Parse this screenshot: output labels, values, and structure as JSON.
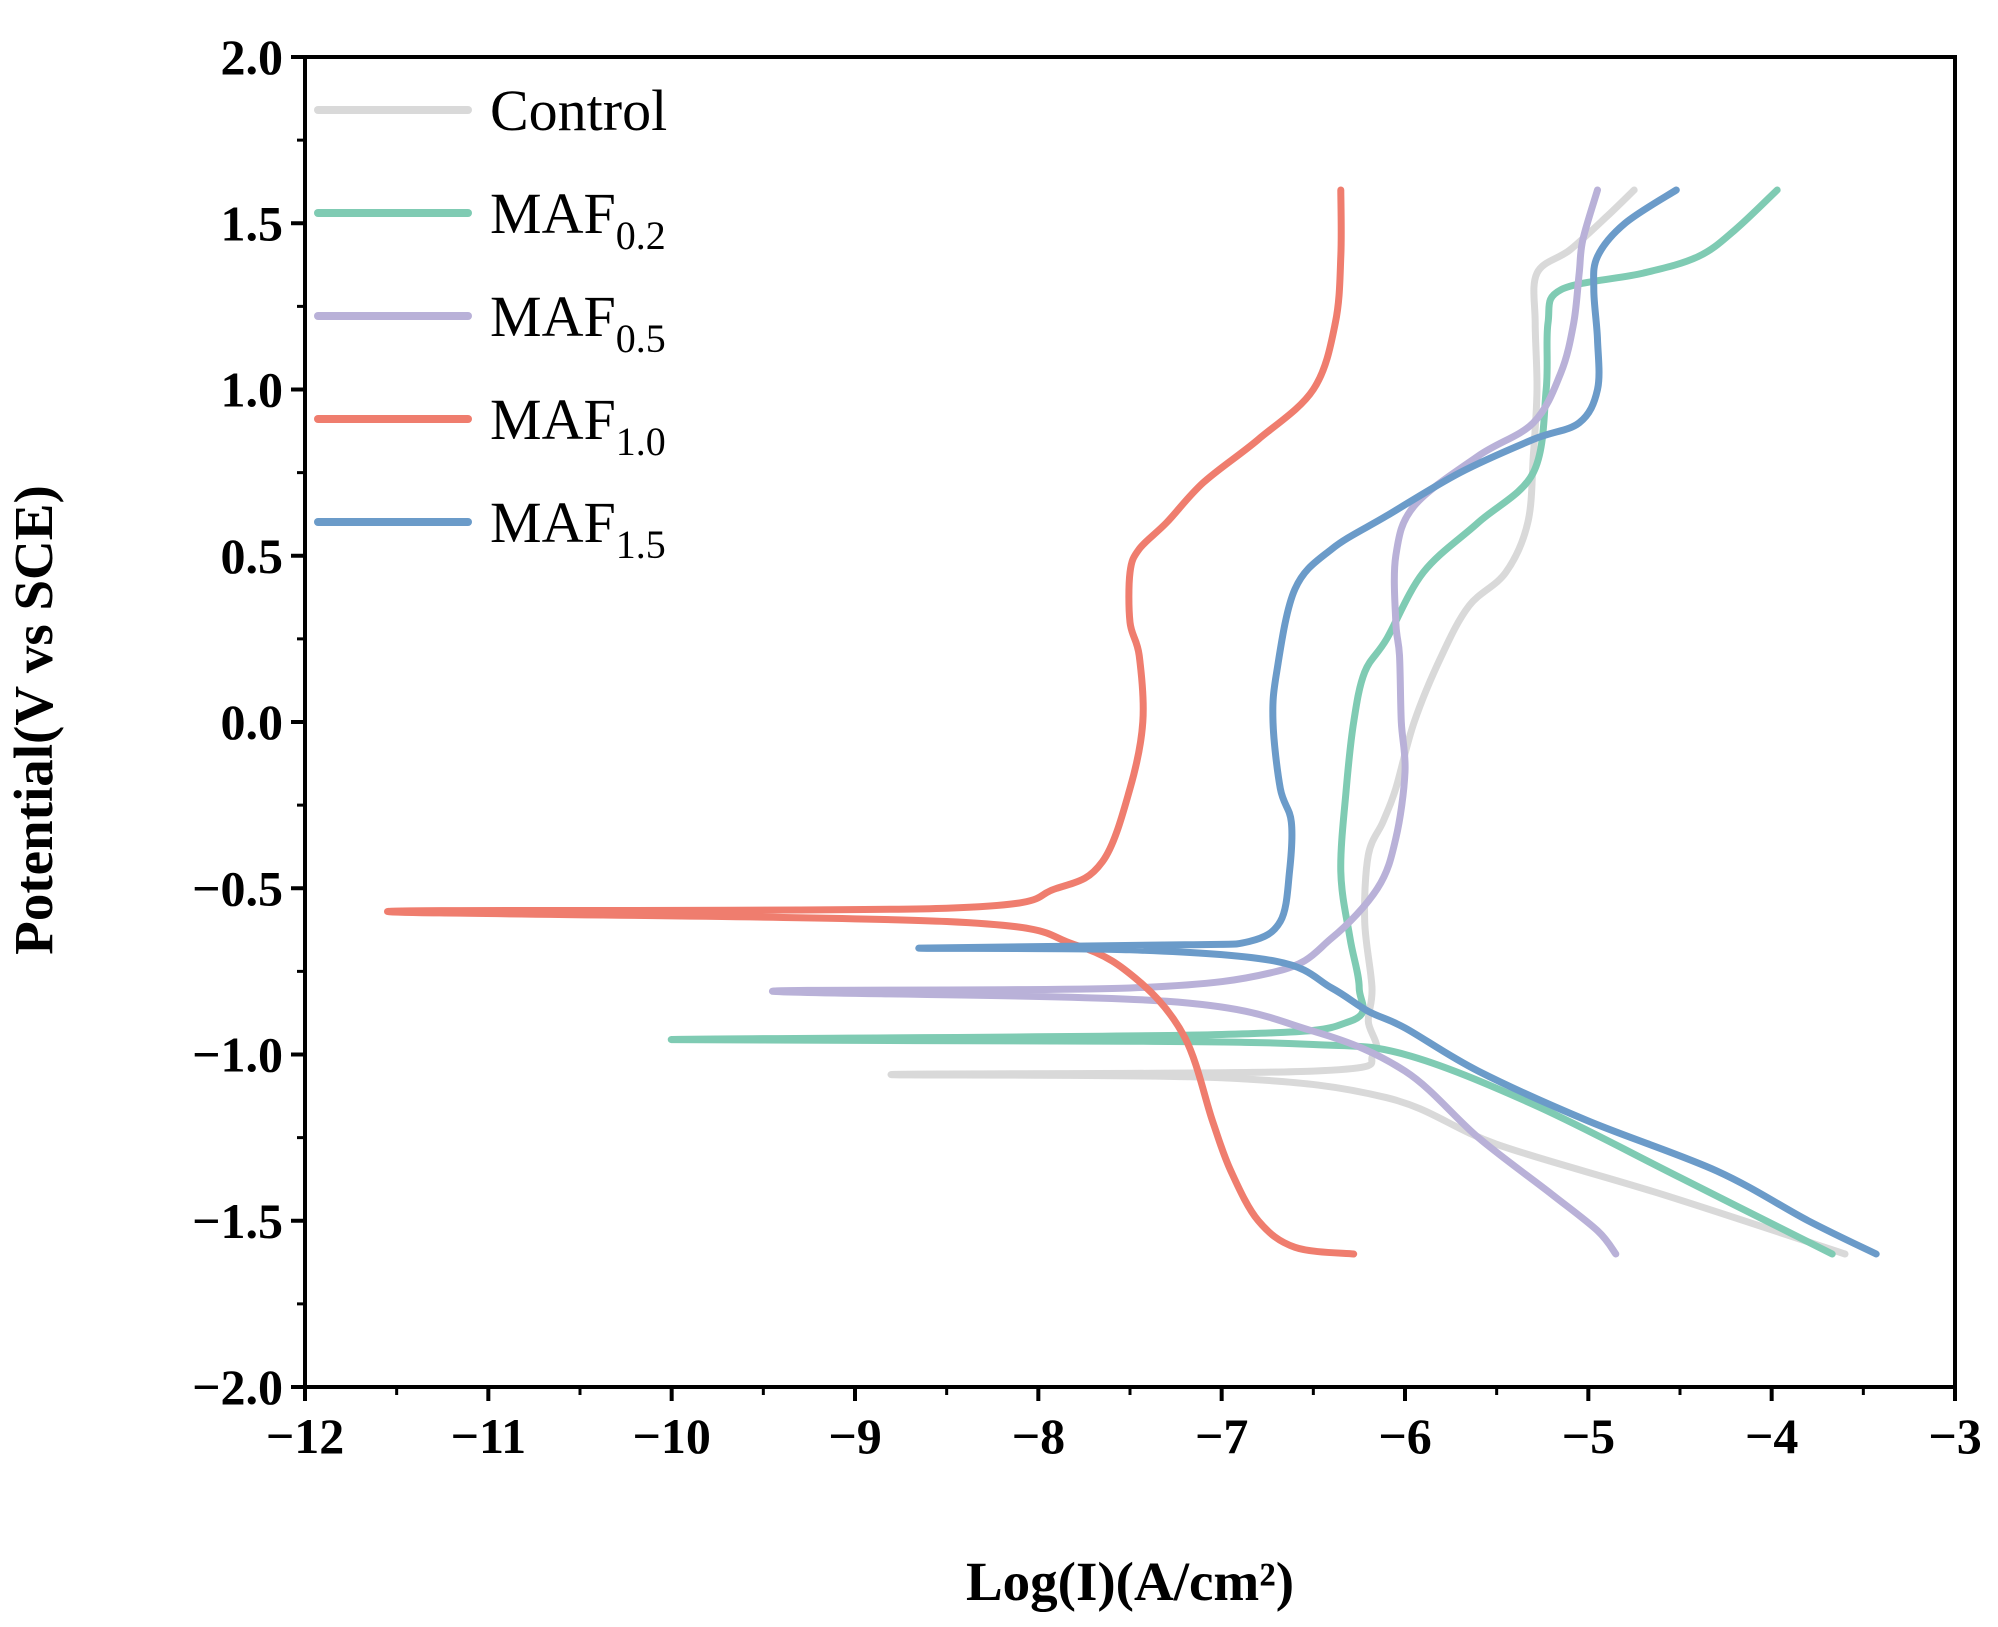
{
  "chart_data": {
    "type": "line",
    "title": "",
    "xlabel": "Log(I)(A/cm²)",
    "ylabel": "Potential(V vs SCE)",
    "xlim": [
      -12,
      -3
    ],
    "ylim": [
      -2.0,
      2.0
    ],
    "xticks": [
      -12,
      -11,
      -10,
      -9,
      -8,
      -7,
      -6,
      -5,
      -4,
      -3
    ],
    "xtick_labels": [
      "−12",
      "−11",
      "−10",
      "−9",
      "−8",
      "−7",
      "−6",
      "−5",
      "−4",
      "−3"
    ],
    "yticks": [
      -2.0,
      -1.5,
      -1.0,
      -0.5,
      0.0,
      0.5,
      1.0,
      1.5,
      2.0
    ],
    "ytick_labels": [
      "−2.0",
      "−1.5",
      "−1.0",
      "−0.5",
      "0.0",
      "0.5",
      "1.0",
      "1.5",
      "2.0"
    ],
    "grid": false,
    "legend_position": "top-left",
    "series": [
      {
        "name": "Control",
        "base": "Control",
        "sub": "",
        "color": "#d9d9d9",
        "x": [
          -3.6,
          -4.6,
          -5.5,
          -6.1,
          -7.0,
          -8.8,
          -6.5,
          -6.17,
          -6.2,
          -6.18,
          -6.22,
          -6.2,
          -6.12,
          -6.05,
          -5.95,
          -5.8,
          -5.65,
          -5.45,
          -5.33,
          -5.3,
          -5.28,
          -5.29,
          -5.28,
          -5.1,
          -4.9,
          -4.75
        ],
        "y": [
          -1.6,
          -1.42,
          -1.27,
          -1.13,
          -1.07,
          -1.06,
          -1.05,
          -1.0,
          -0.9,
          -0.8,
          -0.6,
          -0.4,
          -0.3,
          -0.2,
          0.0,
          0.2,
          0.35,
          0.45,
          0.6,
          0.8,
          1.0,
          1.2,
          1.35,
          1.42,
          1.52,
          1.6
        ]
      },
      {
        "name": "MAF0.2",
        "base": "MAF",
        "sub": "0.2",
        "color": "#7fcbb3",
        "x": [
          -3.67,
          -4.5,
          -5.3,
          -6.0,
          -6.5,
          -7.5,
          -10.0,
          -7.0,
          -6.3,
          -6.25,
          -6.3,
          -6.35,
          -6.32,
          -6.28,
          -6.22,
          -6.1,
          -5.9,
          -5.6,
          -5.3,
          -5.23,
          -5.22,
          -5.15,
          -4.7,
          -4.4,
          -4.2,
          -3.97
        ],
        "y": [
          -1.6,
          -1.37,
          -1.15,
          -1.0,
          -0.97,
          -0.96,
          -0.955,
          -0.94,
          -0.9,
          -0.8,
          -0.65,
          -0.45,
          -0.2,
          0.0,
          0.15,
          0.25,
          0.45,
          0.6,
          0.75,
          1.0,
          1.2,
          1.3,
          1.35,
          1.4,
          1.48,
          1.6
        ]
      },
      {
        "name": "MAF0.5",
        "base": "MAF",
        "sub": "0.5",
        "color": "#b9b1d8",
        "x": [
          -4.85,
          -4.95,
          -5.2,
          -5.6,
          -6.0,
          -6.5,
          -7.3,
          -9.45,
          -7.5,
          -6.7,
          -6.4,
          -6.15,
          -6.05,
          -6.0,
          -6.02,
          -6.03,
          -6.05,
          -6.05,
          -5.95,
          -5.6,
          -5.3,
          -5.15,
          -5.08,
          -5.05,
          -5.03,
          -4.95
        ],
        "y": [
          -1.6,
          -1.53,
          -1.42,
          -1.25,
          -1.05,
          -0.93,
          -0.84,
          -0.81,
          -0.8,
          -0.75,
          -0.65,
          -0.5,
          -0.35,
          -0.15,
          0.0,
          0.2,
          0.3,
          0.5,
          0.65,
          0.8,
          0.9,
          1.05,
          1.2,
          1.35,
          1.45,
          1.6
        ]
      },
      {
        "name": "MAF1.0",
        "base": "MAF",
        "sub": "1.0",
        "color": "#ef7d6e",
        "x": [
          -6.28,
          -6.6,
          -6.8,
          -6.95,
          -7.05,
          -7.2,
          -7.45,
          -7.8,
          -8.5,
          -11.55,
          -8.5,
          -7.9,
          -7.65,
          -7.5,
          -7.43,
          -7.45,
          -7.5,
          -7.5,
          -7.45,
          -7.3,
          -7.1,
          -6.8,
          -6.5,
          -6.38,
          -6.35,
          -6.35
        ],
        "y": [
          -1.6,
          -1.58,
          -1.5,
          -1.35,
          -1.2,
          -0.95,
          -0.78,
          -0.67,
          -0.6,
          -0.57,
          -0.56,
          -0.5,
          -0.42,
          -0.2,
          0.0,
          0.2,
          0.3,
          0.45,
          0.52,
          0.6,
          0.72,
          0.85,
          1.0,
          1.2,
          1.4,
          1.6
        ]
      },
      {
        "name": "MAF1.5",
        "base": "MAF",
        "sub": "1.5",
        "color": "#6b9bc9",
        "x": [
          -3.43,
          -3.8,
          -4.3,
          -5.0,
          -5.6,
          -6.0,
          -6.2,
          -6.4,
          -6.7,
          -7.5,
          -8.65,
          -7.2,
          -6.85,
          -6.68,
          -6.63,
          -6.62,
          -6.68,
          -6.72,
          -6.7,
          -6.6,
          -6.4,
          -6.1,
          -5.7,
          -5.3,
          -5.05,
          -4.95,
          -4.95,
          -4.97,
          -4.95,
          -4.8,
          -4.52
        ],
        "y": [
          -1.6,
          -1.5,
          -1.35,
          -1.2,
          -1.05,
          -0.92,
          -0.87,
          -0.8,
          -0.72,
          -0.685,
          -0.68,
          -0.67,
          -0.66,
          -0.6,
          -0.45,
          -0.3,
          -0.2,
          0.0,
          0.15,
          0.4,
          0.52,
          0.62,
          0.75,
          0.85,
          0.9,
          1.0,
          1.15,
          1.3,
          1.4,
          1.5,
          1.6
        ]
      }
    ]
  }
}
